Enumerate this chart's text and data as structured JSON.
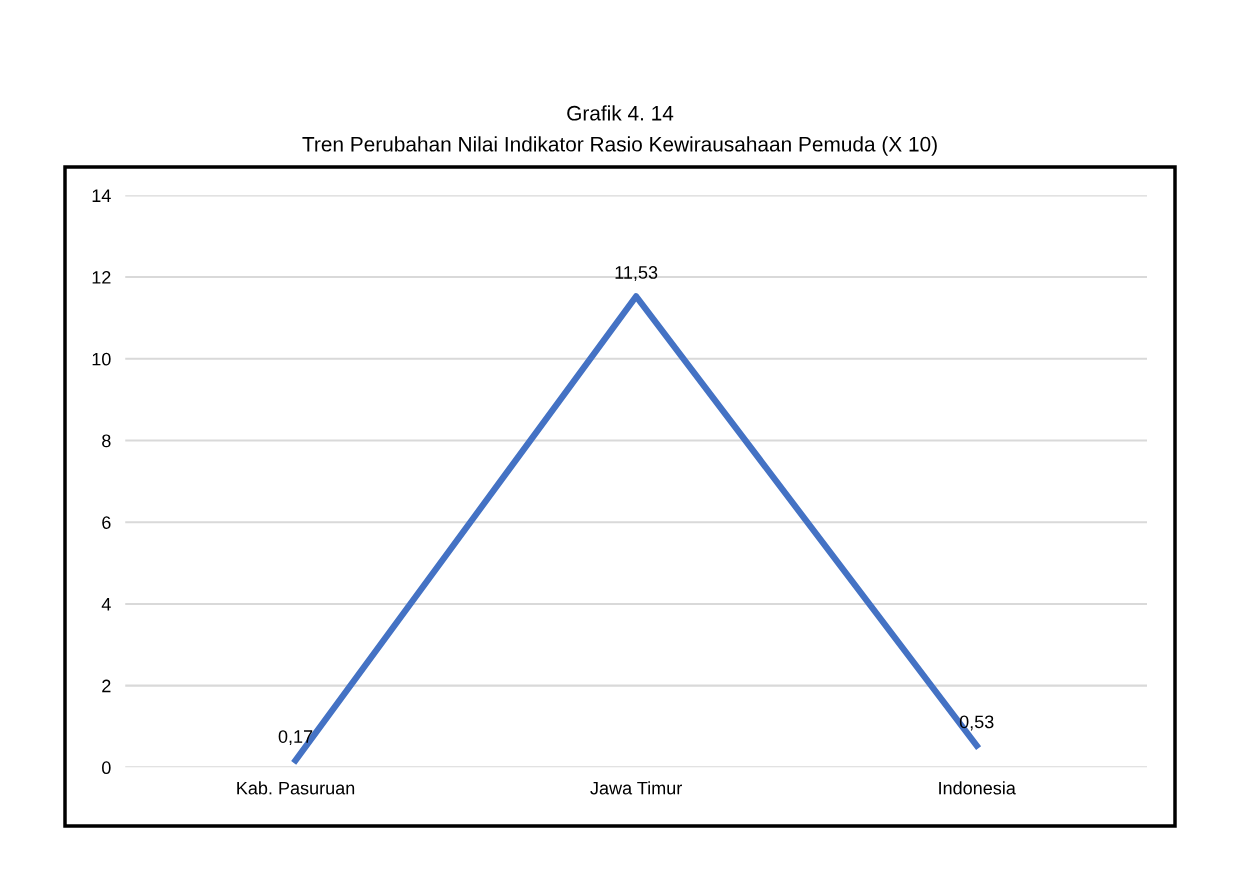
{
  "chart_data": {
    "type": "line",
    "title": "Grafik 4. 14",
    "subtitle": "Tren Perubahan Nilai Indikator Rasio Kewirausahaan Pemuda (X 10)",
    "categories": [
      "Kab. Pasuruan",
      "Jawa Timur",
      "Indonesia"
    ],
    "series": [
      {
        "color": "#4472c4",
        "values": [
          0.17,
          11.53,
          0.53
        ],
        "value_labels": [
          "0,17",
          "11,53",
          "0,53"
        ]
      }
    ],
    "ylim": [
      0,
      14
    ],
    "yticks": [
      0,
      2,
      4,
      6,
      8,
      10,
      12,
      14
    ],
    "grid": "y",
    "marker": "none",
    "line_style": "solid",
    "legend": false
  }
}
